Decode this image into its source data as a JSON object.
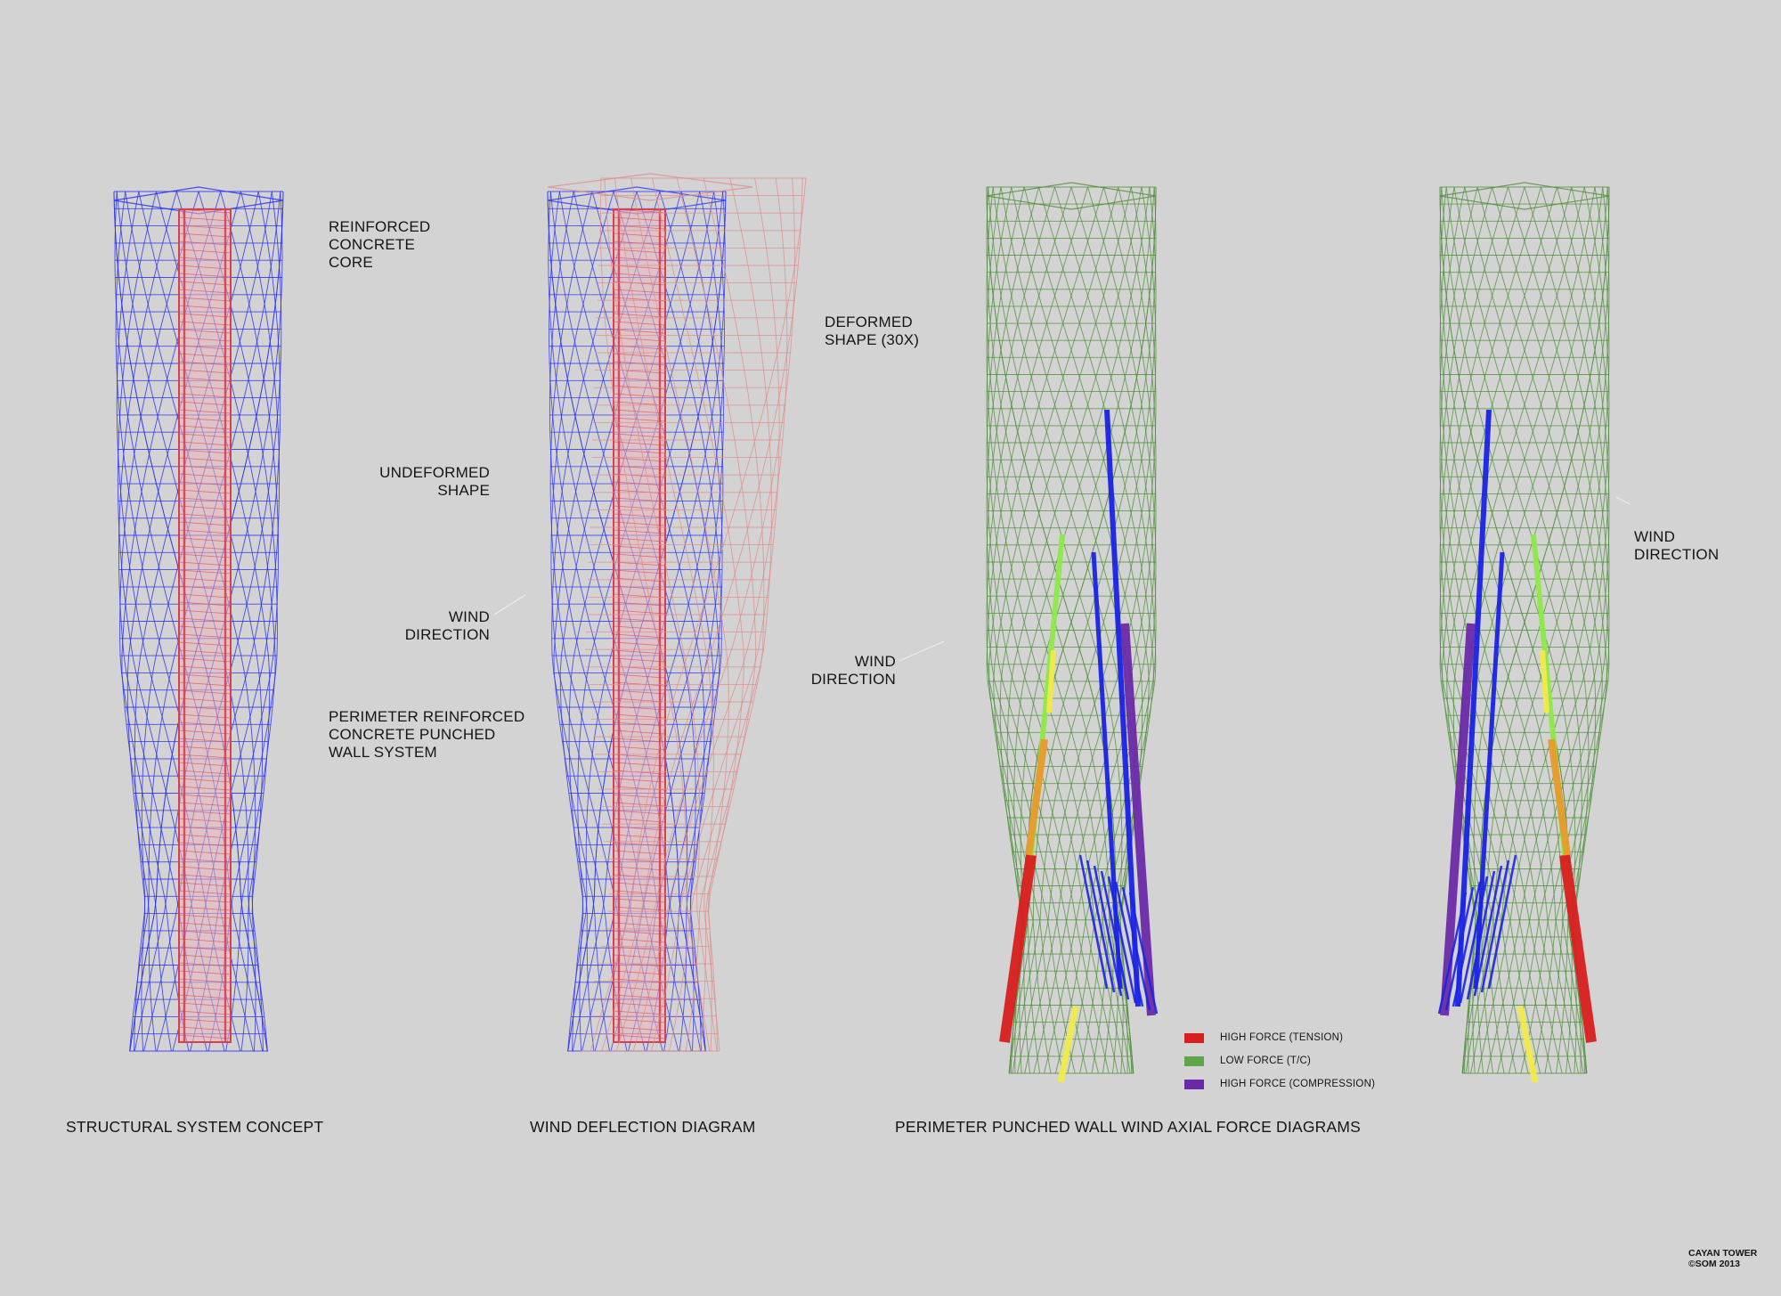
{
  "panels": {
    "concept": {
      "labels": {
        "core": "REINFORCED\nCONCRETE\nCORE",
        "undeformed": "UNDEFORMED\nSHAPE",
        "wind": "WIND\nDIRECTION",
        "perimeter": "PERIMETER REINFORCED\nCONCRETE PUNCHED\nWALL SYSTEM"
      },
      "caption": "STRUCTURAL SYSTEM CONCEPT"
    },
    "deflection": {
      "labels": {
        "deformed": "DEFORMED\nSHAPE (30X)",
        "wind": "WIND\nDIRECTION"
      },
      "caption": "WIND DEFLECTION DIAGRAM"
    },
    "axial": {
      "labels": {
        "wind": "WIND\nDIRECTION"
      },
      "caption": "PERIMETER PUNCHED WALL WIND AXIAL FORCE DIAGRAMS"
    }
  },
  "legend": [
    {
      "label": "HIGH FORCE (TENSION)",
      "color": "#d81e1e"
    },
    {
      "label": "LOW FORCE (T/C)",
      "color": "#5fa64a"
    },
    {
      "label": "HIGH FORCE (COMPRESSION)",
      "color": "#6a2aa8"
    }
  ],
  "credit": "CAYAN TOWER\n©SOM 2013",
  "colors": {
    "background": "#d3d3d3",
    "mesh_blue": "#2a33f0",
    "core_red": "#d8404e",
    "deformed_red": "#e08a8a",
    "mesh_green": "#4f8f3b",
    "force_blue": "#1a22e6",
    "force_purple": "#6a2aa8",
    "force_red": "#d81e1e",
    "force_yellow": "#f2ea4a",
    "force_orange": "#e79a2c",
    "force_lightgreen": "#8fe84a"
  }
}
